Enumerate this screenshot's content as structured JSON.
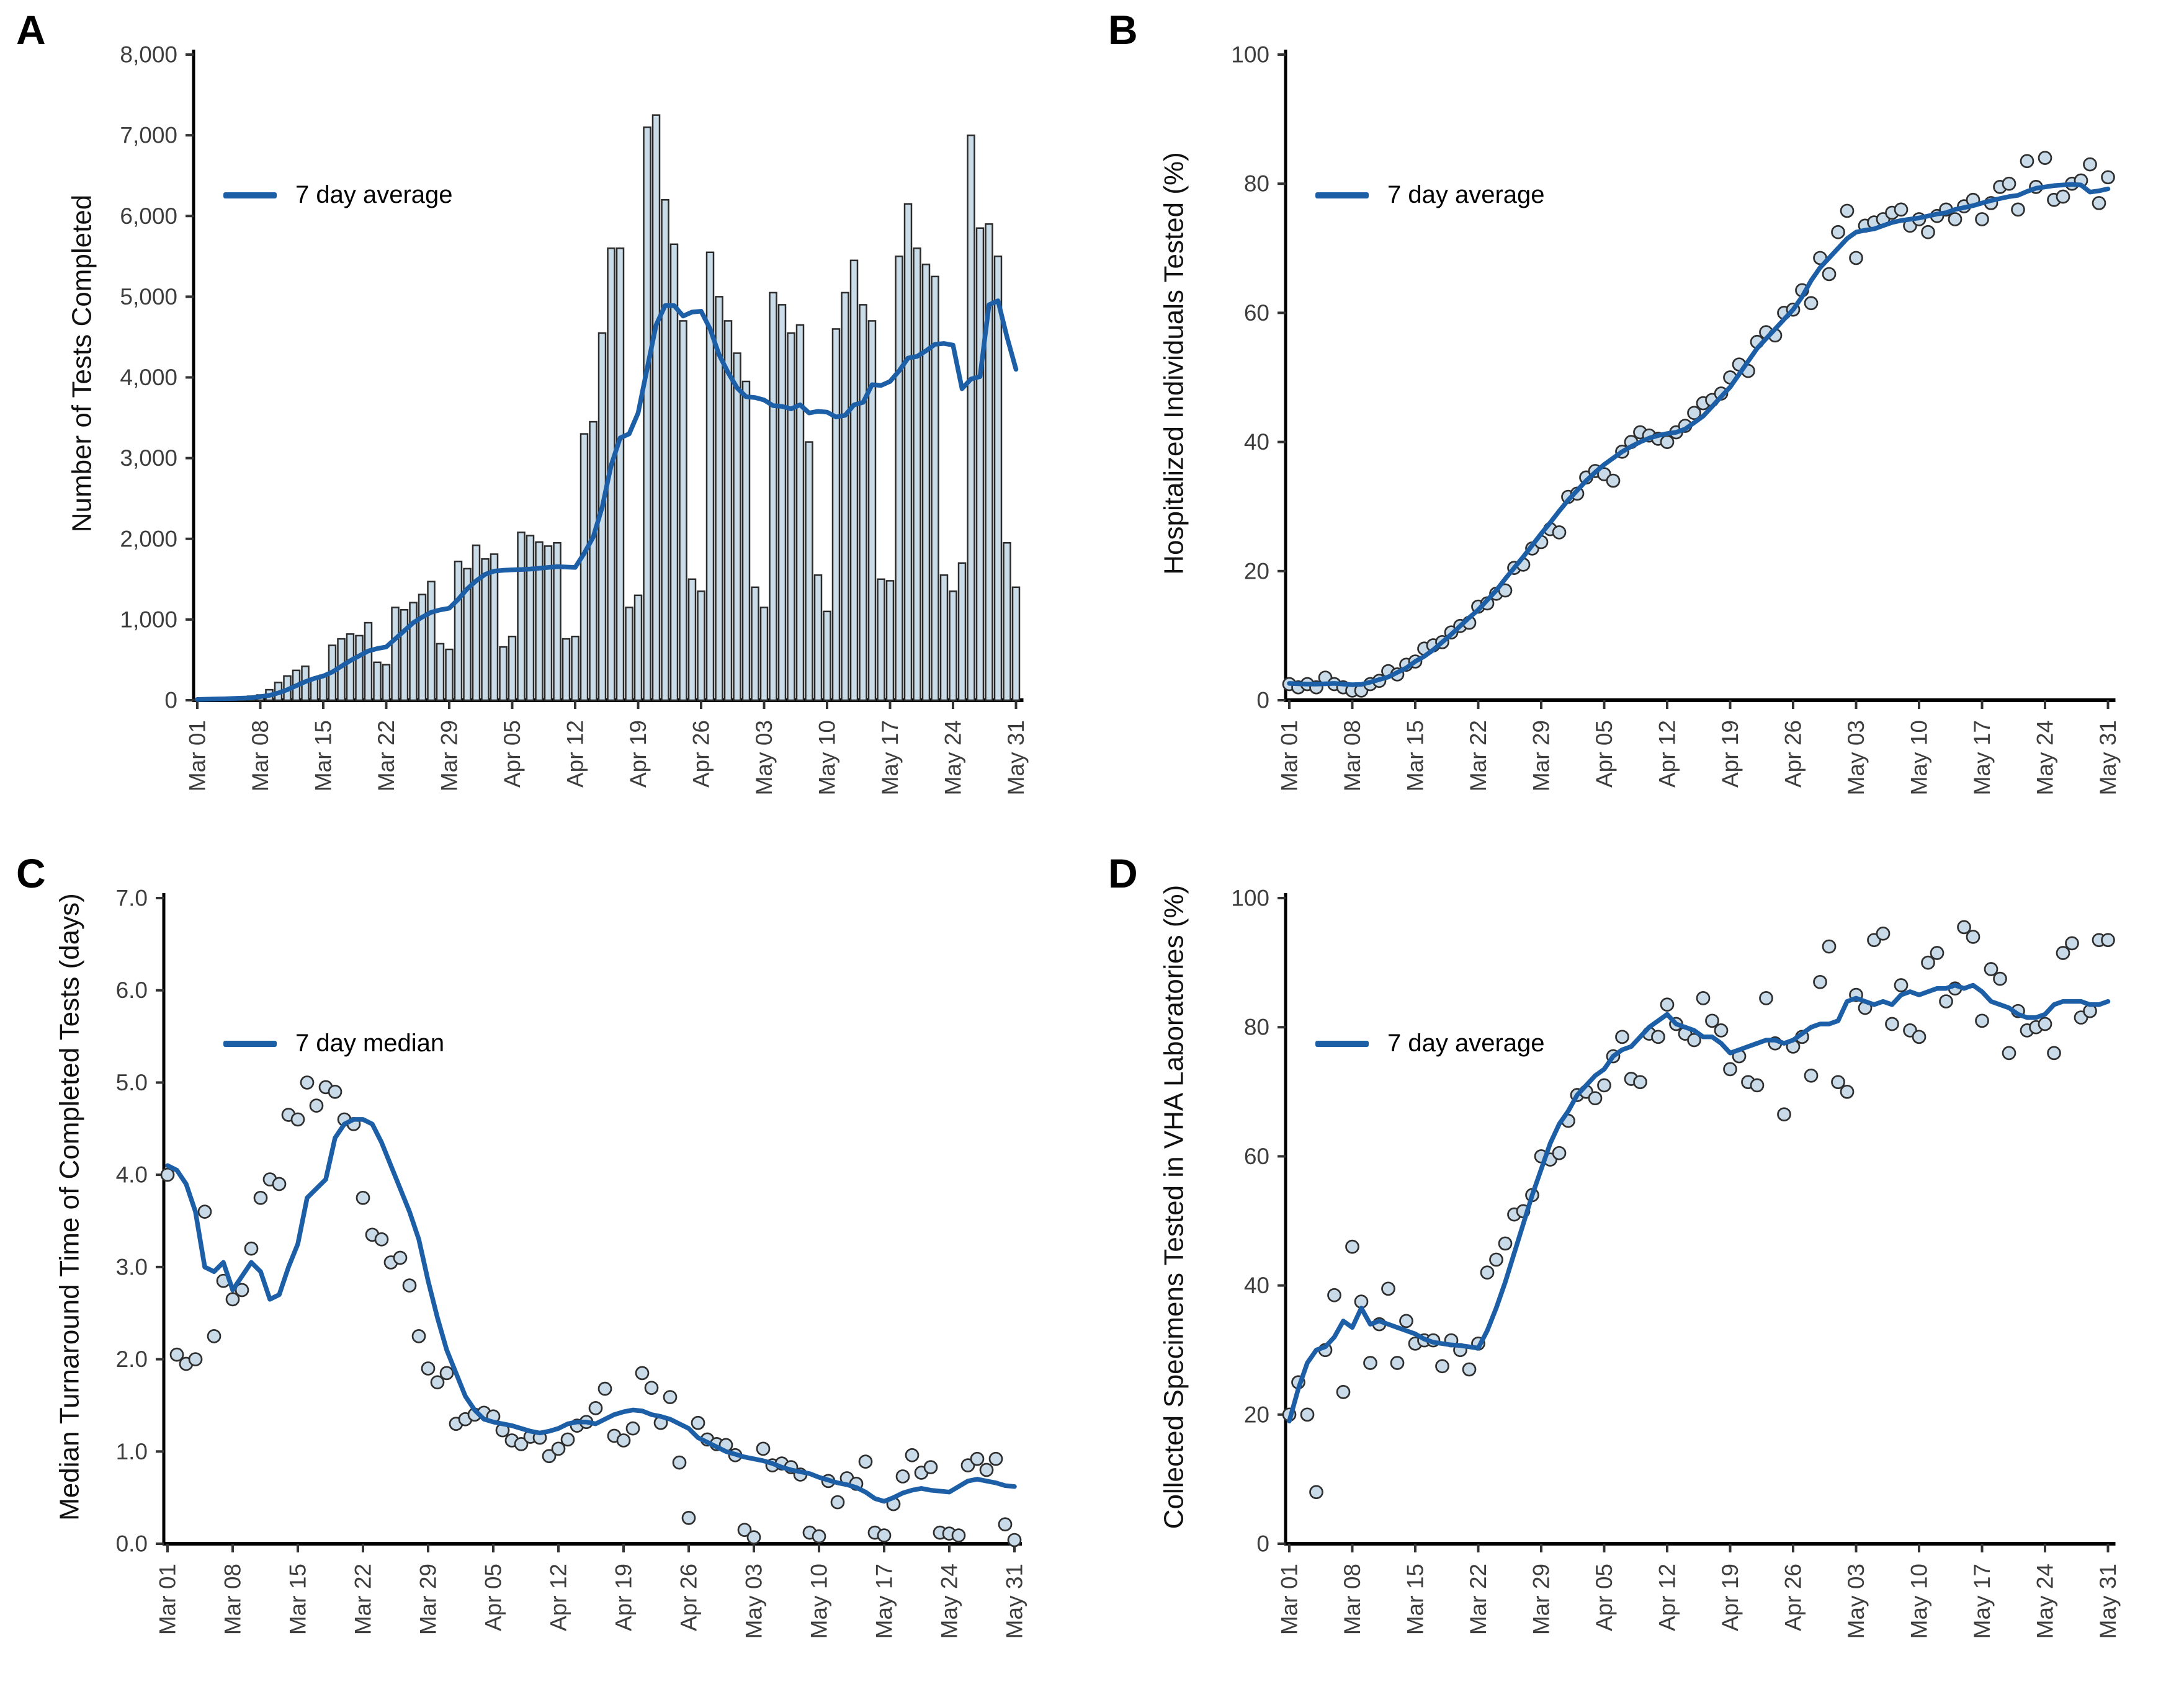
{
  "figure": {
    "background": "#ffffff",
    "x_tick_day_indices": [
      0,
      7,
      14,
      21,
      28,
      35,
      42,
      49,
      56,
      63,
      70,
      77,
      84,
      91
    ],
    "x_tick_labels": [
      "Mar 01",
      "Mar 08",
      "Mar 15",
      "Mar 22",
      "Mar 29",
      "Apr 05",
      "Apr 12",
      "Apr 19",
      "Apr 26",
      "May 03",
      "May 10",
      "May 17",
      "May 24",
      "May 31"
    ]
  },
  "colors": {
    "accent_line": "#1d5fa7",
    "point_fill": "#c9dbe8",
    "point_stroke": "#2e2e2e",
    "bar_fill": "#cbdce9",
    "bar_stroke": "#2b2b2b",
    "axis": "#000000",
    "tick_label": "#3d3d3d"
  },
  "chart_data": [
    {
      "id": "A",
      "letter": "A",
      "type": "bar",
      "title": "Number of Tests Completed",
      "legend_label": "7 day average",
      "x_range": [
        "Mar 01",
        "May 31"
      ],
      "ylim": [
        0,
        8000
      ],
      "y_tick_labels": [
        "0",
        "1,000",
        "2,000",
        "3,000",
        "4,000",
        "5,000",
        "6,000",
        "7,000",
        "8,000"
      ],
      "values": [
        10,
        15,
        20,
        25,
        30,
        40,
        50,
        65,
        130,
        220,
        300,
        370,
        420,
        260,
        310,
        680,
        760,
        820,
        800,
        960,
        470,
        440,
        1150,
        1120,
        1210,
        1310,
        1470,
        700,
        630,
        1720,
        1630,
        1920,
        1750,
        1810,
        660,
        790,
        2080,
        2040,
        1960,
        1910,
        1950,
        760,
        790,
        3300,
        3450,
        4550,
        5600,
        5600,
        1150,
        1300,
        7100,
        7250,
        6200,
        5650,
        4700,
        1500,
        1350,
        5550,
        5000,
        4700,
        4300,
        3950,
        1400,
        1150,
        5050,
        4900,
        4550,
        4650,
        3200,
        1550,
        1100,
        4600,
        5050,
        5450,
        4900,
        4700,
        1500,
        1480,
        5500,
        6150,
        5600,
        5400,
        5250,
        1550,
        1350,
        1700,
        7000,
        5850,
        5900,
        5500,
        1950,
        1400
      ],
      "line": [
        10,
        12,
        15,
        18,
        22,
        26,
        30,
        45,
        60,
        90,
        130,
        180,
        230,
        270,
        300,
        350,
        420,
        490,
        550,
        610,
        640,
        660,
        760,
        860,
        960,
        1030,
        1090,
        1120,
        1140,
        1250,
        1380,
        1480,
        1560,
        1600,
        1610,
        1615,
        1620,
        1625,
        1635,
        1645,
        1655,
        1650,
        1645,
        1820,
        2020,
        2390,
        2910,
        3250,
        3300,
        3560,
        4110,
        4650,
        4890,
        4890,
        4760,
        4810,
        4820,
        4600,
        4280,
        4060,
        3870,
        3760,
        3750,
        3720,
        3650,
        3640,
        3610,
        3660,
        3560,
        3580,
        3570,
        3510,
        3530,
        3660,
        3690,
        3910,
        3900,
        3950,
        4080,
        4240,
        4260,
        4330,
        4410,
        4420,
        4400,
        3860,
        3980,
        4010,
        4900,
        4950,
        4500,
        4100
      ]
    },
    {
      "id": "B",
      "letter": "B",
      "type": "scatter",
      "title": "Hospitalized Individuals Tested (%)",
      "legend_label": "7 day average",
      "x_range": [
        "Mar 01",
        "May 31"
      ],
      "ylim": [
        0,
        100
      ],
      "y_tick_labels": [
        "0",
        "20",
        "40",
        "60",
        "80",
        "100"
      ],
      "values": [
        2.5,
        2,
        2.5,
        2,
        3.5,
        2.5,
        2,
        1.5,
        1.5,
        2.5,
        3,
        4.5,
        4,
        5.5,
        6,
        8,
        8.5,
        9,
        10.5,
        11.5,
        12,
        14.5,
        15,
        16.5,
        17,
        20.5,
        21,
        23.5,
        24.5,
        26.5,
        26,
        31.5,
        32,
        34.5,
        35.5,
        35,
        34,
        38.5,
        40,
        41.5,
        41,
        40.5,
        40,
        41.5,
        42.5,
        44.5,
        46,
        46.5,
        47.5,
        50,
        52,
        51,
        55.5,
        57,
        56.5,
        60,
        60.5,
        63.5,
        61.5,
        68.5,
        66,
        72.5,
        75.8,
        68.5,
        73.5,
        74,
        74.5,
        75.5,
        76,
        73.5,
        74.5,
        72.5,
        75,
        76,
        74.5,
        76.5,
        77.5,
        74.5,
        77,
        79.5,
        80,
        76,
        83.5,
        79.5,
        84,
        77.5,
        78,
        80,
        80.5,
        83,
        77,
        81
      ],
      "line": [
        2.6,
        2.55,
        2.5,
        2.5,
        2.55,
        2.6,
        2.5,
        2.4,
        2.45,
        2.8,
        3.2,
        3.6,
        4.3,
        5,
        6,
        6.8,
        7.8,
        9,
        10.2,
        11.5,
        12.8,
        14,
        15.5,
        17,
        18.8,
        20.5,
        22.2,
        24,
        25.8,
        27.5,
        29.3,
        31,
        32.5,
        34,
        35.3,
        36.5,
        37.5,
        38.5,
        39.3,
        40,
        40.6,
        41,
        41.3,
        41.5,
        42,
        43,
        44,
        45.5,
        47,
        48.5,
        50.5,
        52.5,
        54.5,
        56,
        57.5,
        59,
        60.5,
        62.5,
        65,
        67,
        68.5,
        70,
        71.5,
        72.5,
        72.8,
        73,
        73.5,
        74,
        74.3,
        74.5,
        74.7,
        75,
        75.3,
        75.5,
        76,
        76.3,
        76.6,
        77,
        77.4,
        77.7,
        78,
        78.2,
        78.8,
        79.3,
        79.5,
        79.7,
        79.8,
        79.9,
        79.8,
        78.7,
        78.9,
        79.2
      ]
    },
    {
      "id": "C",
      "letter": "C",
      "type": "scatter",
      "title": "Median Turnaround Time of Completed Tests (days)",
      "legend_label": "7 day median",
      "x_range": [
        "Mar 01",
        "May 31"
      ],
      "ylim": [
        0,
        7
      ],
      "y_tick_labels": [
        "0.0",
        "1.0",
        "2.0",
        "3.0",
        "4.0",
        "5.0",
        "6.0",
        "7.0"
      ],
      "values": [
        4,
        2.05,
        1.95,
        2,
        3.6,
        2.25,
        2.85,
        2.65,
        2.75,
        3.2,
        3.75,
        3.95,
        3.9,
        4.65,
        4.6,
        5,
        4.75,
        4.95,
        4.9,
        4.6,
        4.55,
        3.75,
        3.35,
        3.3,
        3.05,
        3.1,
        2.8,
        2.25,
        1.9,
        1.75,
        1.85,
        1.3,
        1.35,
        1.4,
        1.42,
        1.38,
        1.23,
        1.12,
        1.08,
        1.16,
        1.15,
        0.95,
        1.03,
        1.13,
        1.28,
        1.32,
        1.47,
        1.68,
        1.17,
        1.12,
        1.25,
        1.85,
        1.69,
        1.31,
        1.59,
        0.88,
        0.28,
        1.31,
        1.13,
        1.08,
        1.07,
        0.96,
        0.15,
        0.07,
        1.03,
        0.85,
        0.87,
        0.83,
        0.75,
        0.12,
        0.08,
        0.68,
        0.45,
        0.71,
        0.65,
        0.89,
        0.12,
        0.09,
        0.43,
        0.73,
        0.96,
        0.77,
        0.83,
        0.12,
        0.11,
        0.09,
        0.85,
        0.92,
        0.8,
        0.92,
        0.21,
        0.04
      ],
      "line": [
        4.1,
        4.05,
        3.9,
        3.6,
        3,
        2.95,
        3.05,
        2.75,
        2.9,
        3.05,
        2.95,
        2.65,
        2.7,
        3,
        3.25,
        3.75,
        3.85,
        3.95,
        4.4,
        4.55,
        4.6,
        4.6,
        4.55,
        4.35,
        4.1,
        3.85,
        3.6,
        3.3,
        2.85,
        2.45,
        2.1,
        1.85,
        1.6,
        1.45,
        1.35,
        1.32,
        1.3,
        1.28,
        1.25,
        1.22,
        1.2,
        1.22,
        1.25,
        1.3,
        1.32,
        1.32,
        1.3,
        1.35,
        1.4,
        1.43,
        1.45,
        1.44,
        1.4,
        1.38,
        1.35,
        1.3,
        1.25,
        1.15,
        1.1,
        1.05,
        1,
        0.97,
        0.94,
        0.92,
        0.9,
        0.87,
        0.83,
        0.8,
        0.78,
        0.76,
        0.72,
        0.69,
        0.66,
        0.64,
        0.61,
        0.56,
        0.49,
        0.46,
        0.5,
        0.55,
        0.58,
        0.6,
        0.58,
        0.57,
        0.56,
        0.62,
        0.68,
        0.7,
        0.68,
        0.66,
        0.63,
        0.62
      ]
    },
    {
      "id": "D",
      "letter": "D",
      "type": "scatter",
      "title": "Collected Specimens Tested in VHA Laboratories (%)",
      "legend_label": "7 day average",
      "x_range": [
        "Mar 01",
        "May 31"
      ],
      "ylim": [
        0,
        100
      ],
      "y_tick_labels": [
        "0",
        "20",
        "40",
        "60",
        "80",
        "100"
      ],
      "values": [
        20,
        25,
        20,
        8,
        30,
        38.5,
        23.5,
        46,
        37.5,
        28,
        34,
        39.5,
        28,
        34.5,
        31,
        31.5,
        31.5,
        27.5,
        31.5,
        30,
        27,
        31,
        42,
        44,
        46.5,
        51,
        51.5,
        54,
        60,
        59.5,
        60.5,
        65.5,
        69.5,
        70,
        69,
        71,
        75.5,
        78.5,
        72,
        71.5,
        79,
        78.5,
        83.5,
        80.5,
        79,
        78,
        84.5,
        81,
        79.5,
        73.5,
        75.5,
        71.5,
        71,
        84.5,
        77.5,
        66.5,
        77,
        78.5,
        72.5,
        87,
        92.5,
        71.5,
        70,
        85,
        83,
        93.5,
        94.5,
        80.5,
        86.5,
        79.5,
        78.5,
        90,
        91.5,
        84,
        86,
        95.5,
        94,
        81,
        89,
        87.5,
        76,
        82.5,
        79.5,
        80,
        80.5,
        76,
        91.5,
        93,
        81.5,
        82.5,
        93.5,
        93.5
      ],
      "line": [
        19,
        24,
        28,
        30,
        30.5,
        32,
        34.5,
        33.5,
        36.5,
        34,
        34.5,
        34,
        33.5,
        33,
        32.5,
        31.7,
        31.2,
        31,
        30.8,
        30.7,
        30.5,
        30.3,
        33,
        36.5,
        40.5,
        45,
        49.5,
        54,
        58,
        62,
        65,
        67,
        69.5,
        71,
        72.5,
        73.5,
        75.5,
        76.5,
        77,
        78.5,
        80,
        81,
        82,
        80.5,
        80,
        79.5,
        78.5,
        78.5,
        77.5,
        76,
        76.5,
        77,
        77.5,
        78,
        78,
        77.5,
        78,
        79,
        80,
        80.5,
        80.5,
        81,
        84,
        84.5,
        84,
        83.5,
        84,
        83.5,
        85,
        85.5,
        85,
        85.5,
        86,
        86,
        86.5,
        86,
        86.5,
        85.5,
        84,
        83.5,
        83,
        82,
        81.5,
        81.5,
        82,
        83.5,
        84,
        84,
        84,
        83.5,
        83.5,
        84
      ]
    }
  ]
}
